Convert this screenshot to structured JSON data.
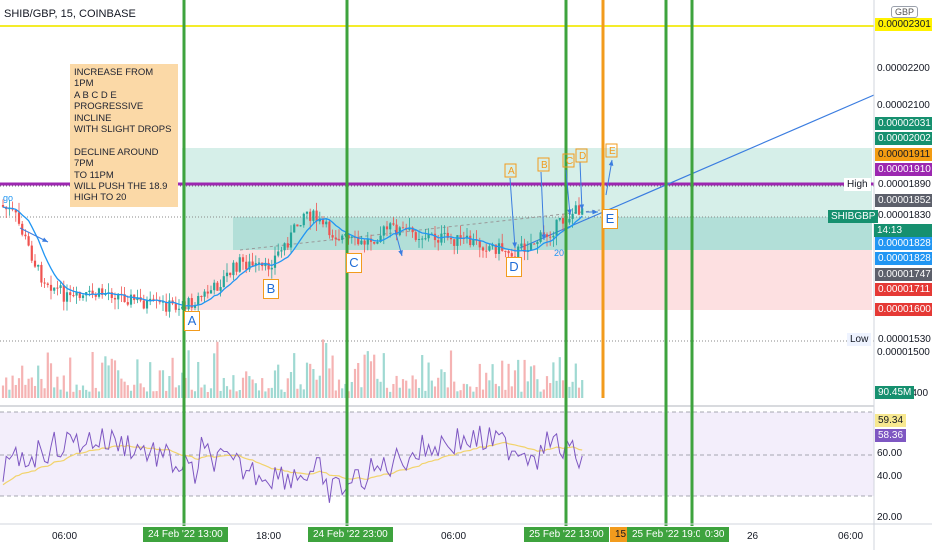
{
  "header": {
    "symbol_line": "SHIB/GBP, 15, COINBASE",
    "currency": "GBP"
  },
  "note": {
    "text": "INCREASE FROM 1PM\nA B C D E\nPROGRESSIVE INCLINE\nWITH SLIGHT DROPS\n\nDECLINE AROUND 7PM\nTO 11PM\nWILL PUSH THE 18.9\nHIGH TO 20"
  },
  "annotations": {
    "points": [
      "A",
      "B",
      "C",
      "D",
      "E"
    ],
    "small_points": [
      "A",
      "B",
      "C",
      "D",
      "E"
    ],
    "d_level_label": "20",
    "left_label": "go"
  },
  "price_axis": {
    "scale": [
      "0.00002200",
      "0.00002100",
      "0.00001500",
      "1.400"
    ],
    "badges": [
      {
        "text": "0.00002301",
        "bg": "#fff200",
        "fg": "#131722"
      },
      {
        "text": "0.00002031",
        "bg": "#16906f",
        "fg": "#ffffff"
      },
      {
        "text": "0.00002002",
        "bg": "#16906f",
        "fg": "#ffffff"
      },
      {
        "text": "0.00001911",
        "bg": "#f39c12",
        "fg": "#131722"
      },
      {
        "text": "0.00001910",
        "bg": "#9c27b0",
        "fg": "#ffffff"
      },
      {
        "text": "0.00001890",
        "bg": "#ffffff",
        "fg": "#131722"
      },
      {
        "text": "0.00001852",
        "bg": "#5d606b",
        "fg": "#ffffff"
      },
      {
        "text": "0.00001830",
        "bg": "#ffffff",
        "fg": "#131722"
      },
      {
        "text": "0.00001828",
        "bg": "#2196f3",
        "fg": "#ffffff"
      },
      {
        "text": "0.00001828",
        "bg": "#2196f3",
        "fg": "#ffffff"
      },
      {
        "text": "0.00001747",
        "bg": "#5d606b",
        "fg": "#ffffff"
      },
      {
        "text": "0.00001711",
        "bg": "#e53935",
        "fg": "#ffffff"
      },
      {
        "text": "0.00001600",
        "bg": "#e53935",
        "fg": "#ffffff"
      },
      {
        "text": "0.00001530",
        "bg": "#ffffff",
        "fg": "#131722"
      },
      {
        "text": "90.45M",
        "bg": "#16906f",
        "fg": "#ffffff"
      }
    ],
    "high_label": "High",
    "low_label": "Low",
    "symbol_tag": "SHIBGBP",
    "countdown": "14:13"
  },
  "rsi": {
    "value_top": "59.34",
    "value_bottom": "58.36",
    "scale": [
      "60.00",
      "40.00",
      "20.00"
    ]
  },
  "time_axis": {
    "labels": [
      "06:00",
      "18:00",
      "06:00",
      "26",
      "06:00"
    ],
    "badges": [
      "24 Feb '22   13:00",
      "24 Feb '22   23:00",
      "25 Feb '22   13:00",
      "15",
      "25 Feb '22   19:00",
      "0:30"
    ]
  },
  "colors": {
    "green_line": "#3ea33e",
    "orange_line": "#f29b1d",
    "yellow_line": "#f4ec2a",
    "purple_line": "#9c27b0",
    "rsi_line": "#7e57c2",
    "rsi_ma": "#f2d36b",
    "ma_line": "#2196f3",
    "up": "#26a69a",
    "down": "#ef5350"
  }
}
